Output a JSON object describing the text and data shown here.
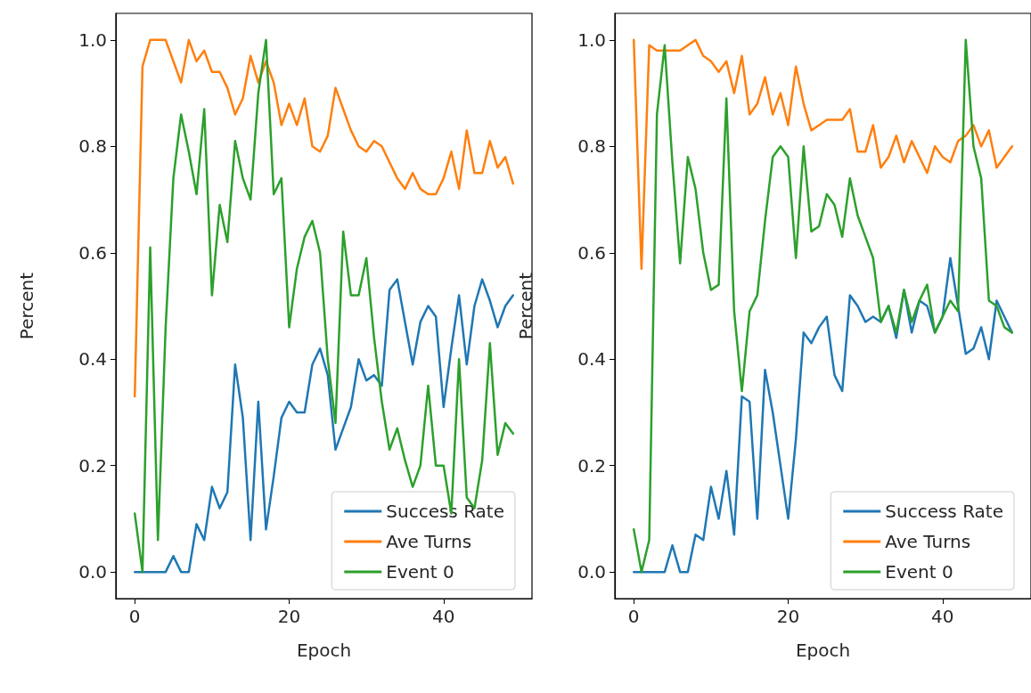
{
  "chart_data": [
    {
      "type": "line",
      "xlabel": "Epoch",
      "ylabel": "Percent",
      "xlim": [
        -2.45,
        51.45
      ],
      "ylim": [
        -0.05,
        1.05
      ],
      "xticks": [
        0,
        20,
        40
      ],
      "yticks": [
        {
          "value": 0,
          "label": "0.0"
        },
        {
          "value": 0.2,
          "label": "0.2"
        },
        {
          "value": 0.4,
          "label": "0.4"
        },
        {
          "value": 0.6,
          "label": "0.6"
        },
        {
          "value": 0.8,
          "label": "0.8"
        },
        {
          "value": 1,
          "label": "1.0"
        }
      ],
      "legend": "bottom right",
      "grid": false,
      "x": [
        0,
        1,
        2,
        3,
        4,
        5,
        6,
        7,
        8,
        9,
        10,
        11,
        12,
        13,
        14,
        15,
        16,
        17,
        18,
        19,
        20,
        21,
        22,
        23,
        24,
        25,
        26,
        27,
        28,
        29,
        30,
        31,
        32,
        33,
        34,
        35,
        36,
        37,
        38,
        39,
        40,
        41,
        42,
        43,
        44,
        45,
        46,
        47,
        48,
        49
      ],
      "series": [
        {
          "name": "Success Rate",
          "color": "#1f77b4",
          "values": [
            0,
            0,
            0,
            0,
            0,
            0.03,
            0,
            0,
            0.09,
            0.06,
            0.16,
            0.12,
            0.15,
            0.39,
            0.29,
            0.06,
            0.32,
            0.08,
            0.18,
            0.29,
            0.32,
            0.3,
            0.3,
            0.39,
            0.42,
            0.37,
            0.23,
            0.27,
            0.31,
            0.4,
            0.36,
            0.37,
            0.35,
            0.53,
            0.55,
            0.47,
            0.39,
            0.47,
            0.5,
            0.48,
            0.31,
            0.42,
            0.52,
            0.39,
            0.5,
            0.55,
            0.51,
            0.46,
            0.5,
            0.52
          ]
        },
        {
          "name": "Ave Turns",
          "color": "#ff7f0e",
          "values": [
            0.33,
            0.95,
            1,
            1,
            1,
            0.96,
            0.92,
            1,
            0.96,
            0.98,
            0.94,
            0.94,
            0.91,
            0.86,
            0.89,
            0.97,
            0.92,
            0.96,
            0.92,
            0.84,
            0.88,
            0.84,
            0.89,
            0.8,
            0.79,
            0.82,
            0.91,
            0.87,
            0.83,
            0.8,
            0.79,
            0.81,
            0.8,
            0.77,
            0.74,
            0.72,
            0.75,
            0.72,
            0.71,
            0.71,
            0.74,
            0.79,
            0.72,
            0.83,
            0.75,
            0.75,
            0.81,
            0.76,
            0.78,
            0.73
          ]
        },
        {
          "name": "Event 0",
          "color": "#2ca02c",
          "values": [
            0.11,
            0,
            0.61,
            0.06,
            0.46,
            0.74,
            0.86,
            0.79,
            0.71,
            0.87,
            0.52,
            0.69,
            0.62,
            0.81,
            0.74,
            0.7,
            0.9,
            1,
            0.71,
            0.74,
            0.46,
            0.57,
            0.63,
            0.66,
            0.6,
            0.4,
            0.28,
            0.64,
            0.52,
            0.52,
            0.59,
            0.44,
            0.32,
            0.23,
            0.27,
            0.21,
            0.16,
            0.2,
            0.35,
            0.2,
            0.2,
            0.11,
            0.4,
            0.14,
            0.12,
            0.21,
            0.43,
            0.22,
            0.28,
            0.26
          ]
        }
      ]
    },
    {
      "type": "line",
      "xlabel": "Epoch",
      "ylabel": "Percent",
      "xlim": [
        -2.45,
        51.45
      ],
      "ylim": [
        -0.05,
        1.05
      ],
      "xticks": [
        0,
        20,
        40
      ],
      "yticks": [
        {
          "value": 0,
          "label": "0.0"
        },
        {
          "value": 0.2,
          "label": "0.2"
        },
        {
          "value": 0.4,
          "label": "0.4"
        },
        {
          "value": 0.6,
          "label": "0.6"
        },
        {
          "value": 0.8,
          "label": "0.8"
        },
        {
          "value": 1,
          "label": "1.0"
        }
      ],
      "legend": "bottom right",
      "grid": false,
      "x": [
        0,
        1,
        2,
        3,
        4,
        5,
        6,
        7,
        8,
        9,
        10,
        11,
        12,
        13,
        14,
        15,
        16,
        17,
        18,
        19,
        20,
        21,
        22,
        23,
        24,
        25,
        26,
        27,
        28,
        29,
        30,
        31,
        32,
        33,
        34,
        35,
        36,
        37,
        38,
        39,
        40,
        41,
        42,
        43,
        44,
        45,
        46,
        47,
        48,
        49
      ],
      "series": [
        {
          "name": "Success Rate",
          "color": "#1f77b4",
          "values": [
            0,
            0,
            0,
            0,
            0,
            0.05,
            0,
            0,
            0.07,
            0.06,
            0.16,
            0.1,
            0.19,
            0.07,
            0.33,
            0.32,
            0.1,
            0.38,
            0.3,
            0.2,
            0.1,
            0.25,
            0.45,
            0.43,
            0.46,
            0.48,
            0.37,
            0.34,
            0.52,
            0.5,
            0.47,
            0.48,
            0.47,
            0.5,
            0.44,
            0.53,
            0.45,
            0.51,
            0.5,
            0.45,
            0.48,
            0.59,
            0.5,
            0.41,
            0.42,
            0.46,
            0.4,
            0.51,
            0.48,
            0.45
          ]
        },
        {
          "name": "Ave Turns",
          "color": "#ff7f0e",
          "values": [
            1,
            0.57,
            0.99,
            0.98,
            0.98,
            0.98,
            0.98,
            0.99,
            1,
            0.97,
            0.96,
            0.94,
            0.96,
            0.9,
            0.97,
            0.86,
            0.88,
            0.93,
            0.86,
            0.9,
            0.84,
            0.95,
            0.88,
            0.83,
            0.84,
            0.85,
            0.85,
            0.85,
            0.87,
            0.79,
            0.79,
            0.84,
            0.76,
            0.78,
            0.82,
            0.77,
            0.81,
            0.78,
            0.75,
            0.8,
            0.78,
            0.77,
            0.81,
            0.82,
            0.84,
            0.8,
            0.83,
            0.76,
            0.78,
            0.8
          ]
        },
        {
          "name": "Event 0",
          "color": "#2ca02c",
          "values": [
            0.08,
            0,
            0.06,
            0.86,
            0.99,
            0.77,
            0.58,
            0.78,
            0.72,
            0.6,
            0.53,
            0.54,
            0.89,
            0.49,
            0.34,
            0.49,
            0.52,
            0.66,
            0.78,
            0.8,
            0.78,
            0.59,
            0.8,
            0.64,
            0.65,
            0.71,
            0.69,
            0.63,
            0.74,
            0.67,
            0.63,
            0.59,
            0.47,
            0.5,
            0.45,
            0.53,
            0.47,
            0.51,
            0.54,
            0.45,
            0.48,
            0.51,
            0.49,
            1,
            0.8,
            0.74,
            0.51,
            0.5,
            0.46,
            0.45
          ]
        }
      ]
    }
  ]
}
